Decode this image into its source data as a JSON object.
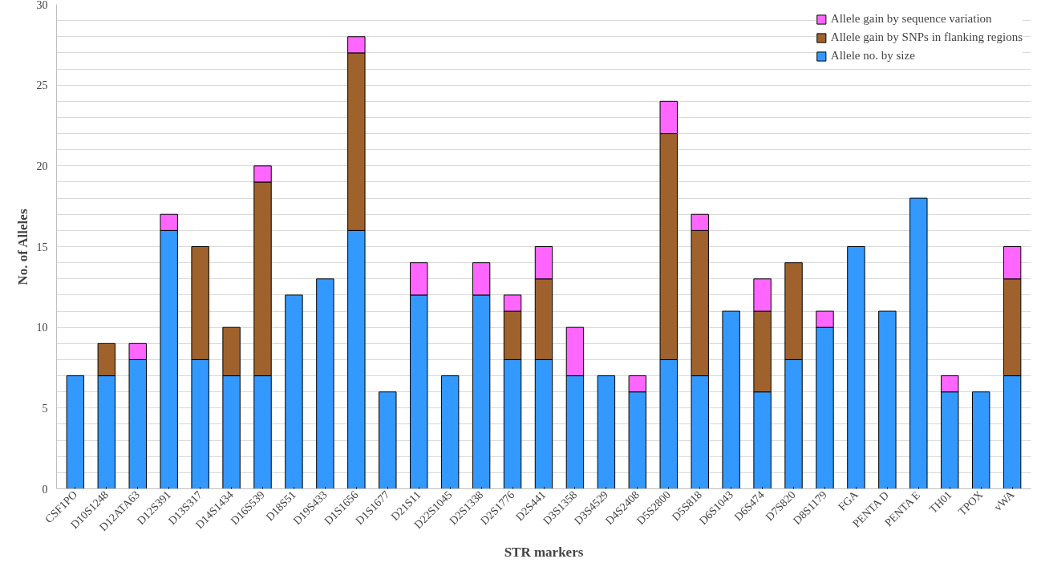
{
  "chart_data": {
    "type": "bar",
    "stacked": true,
    "xlabel": "STR markers",
    "ylabel": "No. of Alleles",
    "categories": [
      "CSF1PO",
      "D10S1248",
      "D12ATA63",
      "D12S391",
      "D13S317",
      "D14S1434",
      "D16S539",
      "D18S51",
      "D19S433",
      "D1S1656",
      "D1S1677",
      "D21S11",
      "D22S1045",
      "D2S1338",
      "D2S1776",
      "D2S441",
      "D3S1358",
      "D3S4529",
      "D4S2408",
      "D5S2800",
      "D5S818",
      "D6S1043",
      "D6S474",
      "D7S820",
      "D8S1179",
      "FGA",
      "PENTA D",
      "PENTA E",
      "TH01",
      "TPOX",
      "vWA"
    ],
    "series": [
      {
        "name": "Allele no. by size",
        "color": "#3399ff",
        "values": [
          7,
          7,
          8,
          16,
          8,
          7,
          7,
          12,
          13,
          16,
          6,
          12,
          7,
          12,
          8,
          8,
          7,
          7,
          6,
          8,
          7,
          11,
          6,
          8,
          10,
          15,
          11,
          18,
          6,
          6,
          7
        ]
      },
      {
        "name": "Allele gain by SNPs in flanking regions",
        "color": "#a0622d",
        "values": [
          null,
          2,
          null,
          null,
          7,
          3,
          12,
          null,
          null,
          11,
          null,
          null,
          null,
          null,
          3,
          5,
          null,
          null,
          null,
          14,
          9,
          null,
          5,
          6,
          null,
          null,
          null,
          null,
          null,
          null,
          6
        ]
      },
      {
        "name": "Allele gain by sequence variation",
        "color": "#ff66ff",
        "values": [
          null,
          null,
          1,
          1,
          null,
          null,
          1,
          null,
          null,
          1,
          null,
          2,
          null,
          2,
          1,
          2,
          3,
          null,
          1,
          2,
          1,
          null,
          2,
          null,
          1,
          null,
          null,
          null,
          1,
          null,
          2
        ]
      }
    ],
    "ylim": [
      0,
      30
    ],
    "yticks": [
      0,
      {
        "value": 1,
        "label": null
      },
      {
        "value": 2,
        "label": null
      },
      {
        "value": 3,
        "label": null
      },
      {
        "value": 4,
        "label": null
      },
      5,
      {
        "value": 6,
        "label": null
      },
      {
        "value": 7,
        "label": null
      },
      {
        "value": 8,
        "label": null
      },
      {
        "value": 9,
        "label": null
      },
      10,
      {
        "value": 11,
        "label": null
      },
      {
        "value": 12,
        "label": null
      },
      {
        "value": 13,
        "label": null
      },
      {
        "value": 14,
        "label": null
      },
      15,
      {
        "value": 16,
        "label": null
      },
      {
        "value": 17,
        "label": null
      },
      {
        "value": 18,
        "label": null
      },
      {
        "value": 19,
        "label": null
      },
      20,
      {
        "value": 21,
        "label": null
      },
      {
        "value": 22,
        "label": null
      },
      {
        "value": 23,
        "label": null
      },
      {
        "value": 24,
        "label": null
      },
      25,
      {
        "value": 26,
        "label": null
      },
      {
        "value": 27,
        "label": null
      },
      {
        "value": 28,
        "label": null
      },
      {
        "value": 29,
        "label": null
      },
      30
    ],
    "grid": "y",
    "legend": "top right"
  }
}
